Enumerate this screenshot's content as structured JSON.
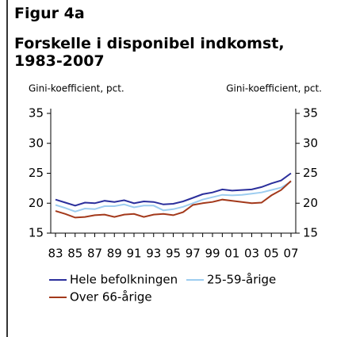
{
  "chart_data": {
    "type": "line",
    "title": "Figur 4a",
    "subtitle": "Forskelle i disponibel indkomst, 1983-2007",
    "ylabel": "Gini-koefficient, pct.",
    "y2label": "Gini-koefficient, pct.",
    "categories": [
      "83",
      null,
      "85",
      null,
      "87",
      null,
      "89",
      null,
      "91",
      null,
      "93",
      null,
      "95",
      null,
      "97",
      null,
      "99",
      null,
      "01",
      null,
      "03",
      null,
      "05",
      null,
      "07"
    ],
    "series": [
      {
        "name": "Hele befolkningen",
        "color": "#2b2f9c",
        "values": [
          20.6,
          20.1,
          19.6,
          20.1,
          20.0,
          20.4,
          20.2,
          20.5,
          20.0,
          20.3,
          20.2,
          19.8,
          19.9,
          20.3,
          20.9,
          21.5,
          21.8,
          22.3,
          22.1,
          22.2,
          22.3,
          22.7,
          23.3,
          23.8,
          25.0
        ]
      },
      {
        "name": "25-59-årige",
        "color": "#9dcdf0",
        "values": [
          19.7,
          19.2,
          18.6,
          19.1,
          19.0,
          19.5,
          19.5,
          19.8,
          19.3,
          19.6,
          19.6,
          18.8,
          19.0,
          19.4,
          20.0,
          20.6,
          21.0,
          21.4,
          21.3,
          21.4,
          21.6,
          21.8,
          22.2,
          22.6,
          23.6
        ]
      },
      {
        "name": "Over 66-årige",
        "color": "#a3391b",
        "values": [
          18.7,
          18.2,
          17.6,
          17.7,
          18.0,
          18.1,
          17.7,
          18.1,
          18.2,
          17.7,
          18.1,
          18.2,
          18.0,
          18.5,
          19.7,
          20.0,
          20.2,
          20.6,
          20.4,
          20.2,
          20.0,
          20.1,
          21.3,
          22.2,
          23.7
        ]
      }
    ],
    "ylim": [
      15,
      35
    ],
    "yticks": [
      15,
      20,
      25,
      30,
      35
    ],
    "y2lim": [
      15,
      35
    ],
    "y2ticks": [
      15,
      20,
      25,
      30,
      35
    ]
  }
}
